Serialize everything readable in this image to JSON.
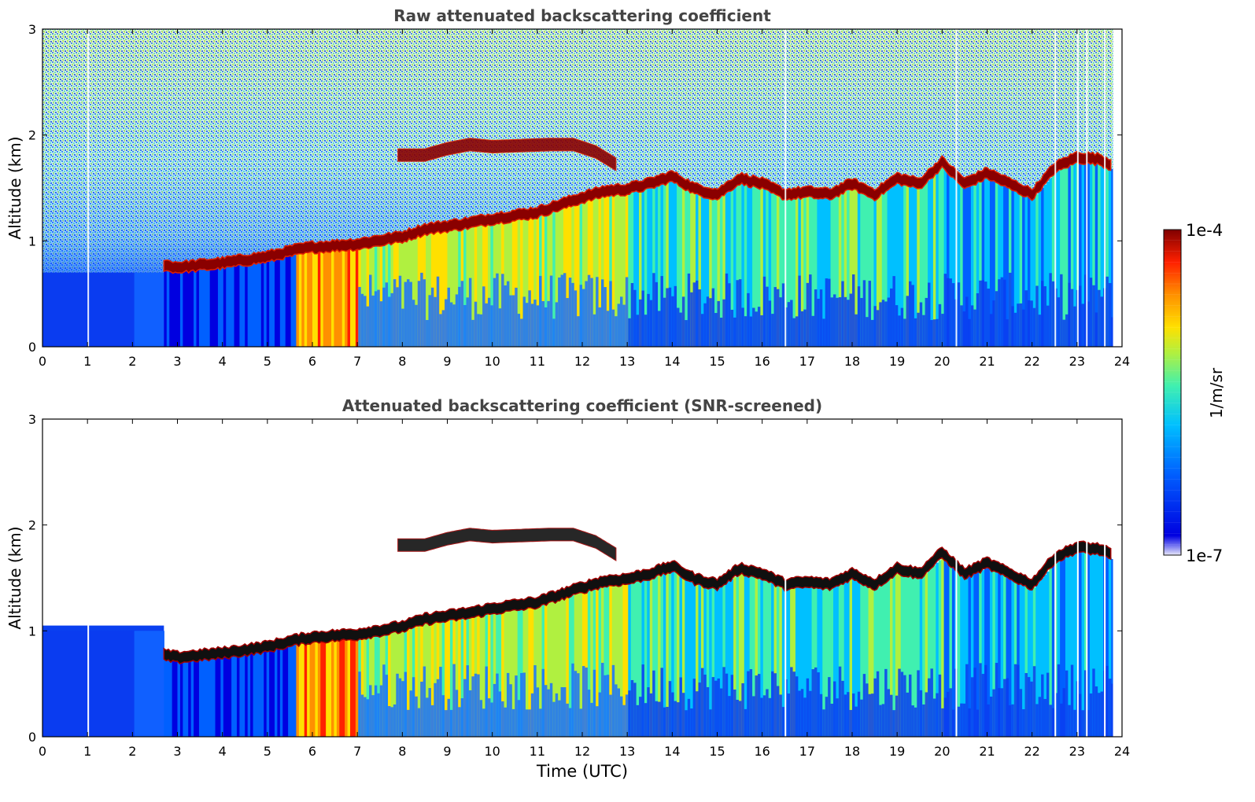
{
  "chart_data": [
    {
      "type": "heatmap",
      "title": "Raw attenuated backscattering coefficient",
      "xlabel": "",
      "ylabel": "Altitude (km)",
      "xlim": [
        0,
        24
      ],
      "ylim": [
        0,
        3
      ],
      "xticks": [
        "0",
        "1",
        "2",
        "3",
        "4",
        "5",
        "6",
        "7",
        "8",
        "9",
        "10",
        "11",
        "12",
        "13",
        "14",
        "15",
        "16",
        "17",
        "18",
        "19",
        "20",
        "21",
        "22",
        "23",
        "24"
      ],
      "yticks": [
        "0",
        "1",
        "2",
        "3"
      ],
      "screened": false
    },
    {
      "type": "heatmap",
      "title": "Attenuated backscattering coefficient (SNR-screened)",
      "xlabel": "Time (UTC)",
      "ylabel": "Altitude (km)",
      "xlim": [
        0,
        24
      ],
      "ylim": [
        0,
        3
      ],
      "xticks": [
        "0",
        "1",
        "2",
        "3",
        "4",
        "5",
        "6",
        "7",
        "8",
        "9",
        "10",
        "11",
        "12",
        "13",
        "14",
        "15",
        "16",
        "17",
        "18",
        "19",
        "20",
        "21",
        "22",
        "23",
        "24"
      ],
      "yticks": [
        "0",
        "1",
        "2",
        "3"
      ],
      "screened": true
    }
  ],
  "colorbar": {
    "label": "1/m/sr",
    "max_label": "1e-4",
    "min_label": "1e-7",
    "scale": "log",
    "colormap": [
      "#e8e8f8",
      "#0000e0",
      "#0060ff",
      "#00c0ff",
      "#40f0b0",
      "#b0f040",
      "#ffe000",
      "#ff9000",
      "#ff2000",
      "#800000"
    ]
  },
  "cloud_top_profile": {
    "time_h": [
      2.7,
      3.0,
      4.0,
      5.0,
      5.6,
      6.0,
      7.0,
      8.0,
      8.5,
      9.0,
      9.5,
      10.0,
      11.0,
      11.5,
      12.0,
      12.5,
      13.0,
      13.5,
      14.0,
      14.5,
      15.0,
      15.5,
      16.0,
      16.5,
      17.0,
      17.5,
      18.0,
      18.5,
      19.0,
      19.5,
      20.0,
      20.5,
      21.0,
      21.5,
      22.0,
      22.5,
      23.0,
      23.5,
      23.8
    ],
    "altitude_km": [
      0.78,
      0.76,
      0.8,
      0.86,
      0.92,
      0.95,
      0.98,
      1.05,
      1.12,
      1.15,
      1.18,
      1.22,
      1.28,
      1.35,
      1.42,
      1.48,
      1.5,
      1.55,
      1.62,
      1.5,
      1.45,
      1.6,
      1.55,
      1.45,
      1.47,
      1.45,
      1.55,
      1.45,
      1.6,
      1.55,
      1.75,
      1.55,
      1.65,
      1.55,
      1.45,
      1.7,
      1.8,
      1.78,
      1.72
    ]
  },
  "upper_layer": {
    "time_h": [
      7.9,
      8.5,
      9.0,
      9.5,
      10.0,
      11.3,
      11.8,
      12.3,
      12.8
    ],
    "altitude_km": [
      1.82,
      1.82,
      1.88,
      1.92,
      1.9,
      1.92,
      1.92,
      1.85,
      1.72
    ]
  }
}
